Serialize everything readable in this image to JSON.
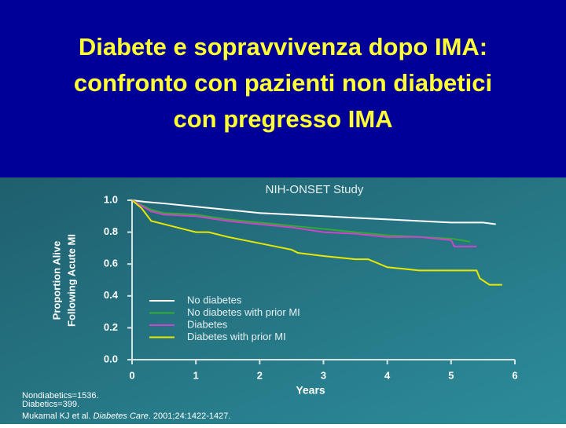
{
  "slide": {
    "title": [
      "Diabete e sopravvivenza dopo IMA:",
      "confronto con pazienti non diabetici",
      "con pregresso IMA"
    ]
  },
  "chart_data": {
    "type": "line",
    "title": "NIH-ONSET Study",
    "x_label": "Years",
    "y_label": [
      "Proportion Alive",
      "Following Acute MI"
    ],
    "xlim": [
      0,
      6
    ],
    "xticks": [
      0,
      1,
      2,
      3,
      4,
      5,
      6
    ],
    "ylim": [
      0,
      1
    ],
    "yticks": [
      {
        "value": 0,
        "label": "0.0"
      },
      0.2,
      0.4,
      0.6,
      0.8,
      {
        "value": 1,
        "label": "1.0"
      }
    ],
    "series": [
      {
        "name": "No diabetes",
        "color": "#ffffff",
        "x": [
          0,
          0.2,
          0.5,
          1,
          1.5,
          2,
          2.5,
          3,
          3.5,
          4,
          4.5,
          5,
          5.5,
          5.7
        ],
        "values": [
          1.0,
          0.99,
          0.98,
          0.96,
          0.94,
          0.92,
          0.91,
          0.9,
          0.89,
          0.88,
          0.87,
          0.86,
          0.86,
          0.85
        ]
      },
      {
        "name": "No diabetes with prior MI",
        "color": "#33aa33",
        "x": [
          0,
          0.3,
          0.5,
          1,
          1.5,
          2,
          2.5,
          3,
          3.5,
          4,
          4.5,
          5,
          5.3
        ],
        "values": [
          1.0,
          0.94,
          0.92,
          0.91,
          0.88,
          0.86,
          0.84,
          0.82,
          0.8,
          0.78,
          0.77,
          0.76,
          0.74
        ]
      },
      {
        "name": "Diabetes",
        "color": "#cc44cc",
        "x": [
          0,
          0.3,
          0.5,
          1,
          1.5,
          2,
          2.5,
          3,
          3.5,
          4,
          4.5,
          5,
          5.05,
          5.4
        ],
        "values": [
          1.0,
          0.93,
          0.91,
          0.9,
          0.87,
          0.85,
          0.83,
          0.8,
          0.79,
          0.77,
          0.77,
          0.75,
          0.71,
          0.71
        ]
      },
      {
        "name": "Diabetes with prior MI",
        "color": "#e8e800",
        "x": [
          0,
          0.15,
          0.3,
          0.5,
          0.8,
          1,
          1.2,
          1.5,
          2,
          2.5,
          2.6,
          3,
          3.5,
          3.7,
          4,
          4.5,
          5,
          5.4,
          5.45,
          5.6,
          5.8
        ],
        "values": [
          1.0,
          0.95,
          0.87,
          0.85,
          0.82,
          0.8,
          0.8,
          0.77,
          0.73,
          0.69,
          0.67,
          0.65,
          0.63,
          0.63,
          0.58,
          0.56,
          0.56,
          0.56,
          0.51,
          0.47,
          0.47
        ]
      }
    ]
  },
  "footnotes": [
    "Nondiabetics=1536.",
    "Diabetics=399."
  ],
  "citation": {
    "authors": "Mukamal KJ et al.",
    "journal": "Diabetes Care",
    "details": ". 2001;24:1422-1427."
  }
}
